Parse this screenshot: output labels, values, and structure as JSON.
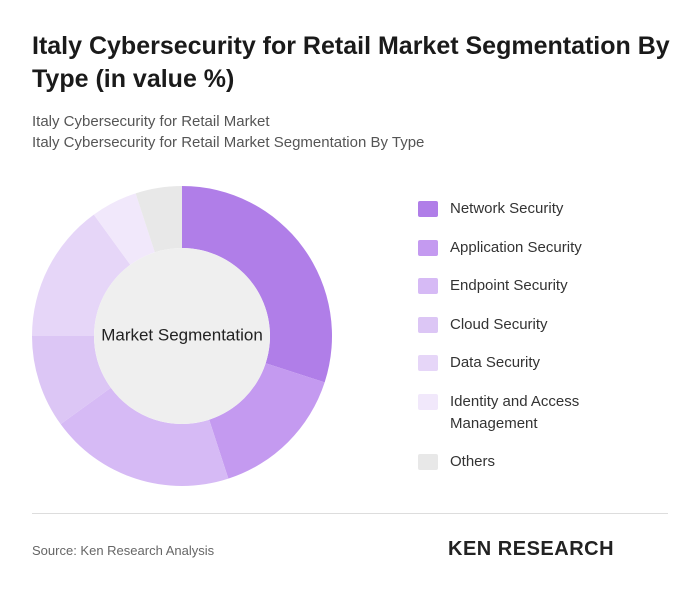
{
  "chart_data": {
    "type": "donut",
    "title": "Italy Cybersecurity for Retail Market Segmentation By Type (in value %)",
    "subtitles": [
      "Italy Cybersecurity for Retail Market",
      "Italy Cybersecurity for Retail Market Segmentation By Type"
    ],
    "center_label": "Market Segmentation",
    "categories": [
      "Network Security",
      "Application Security",
      "Endpoint Security",
      "Cloud Security",
      "Data Security",
      "Identity and Access Management",
      "Others"
    ],
    "values": [
      30,
      15,
      20,
      10,
      15,
      5,
      5
    ],
    "colors": [
      "#b07ee8",
      "#c49af0",
      "#d6baf5",
      "#dcc6f5",
      "#e6d6f8",
      "#f1e8fb",
      "#e8e8e8"
    ]
  },
  "footer": {
    "source": "Source: Ken Research Analysis",
    "logo": "KEN RESEARCH"
  }
}
